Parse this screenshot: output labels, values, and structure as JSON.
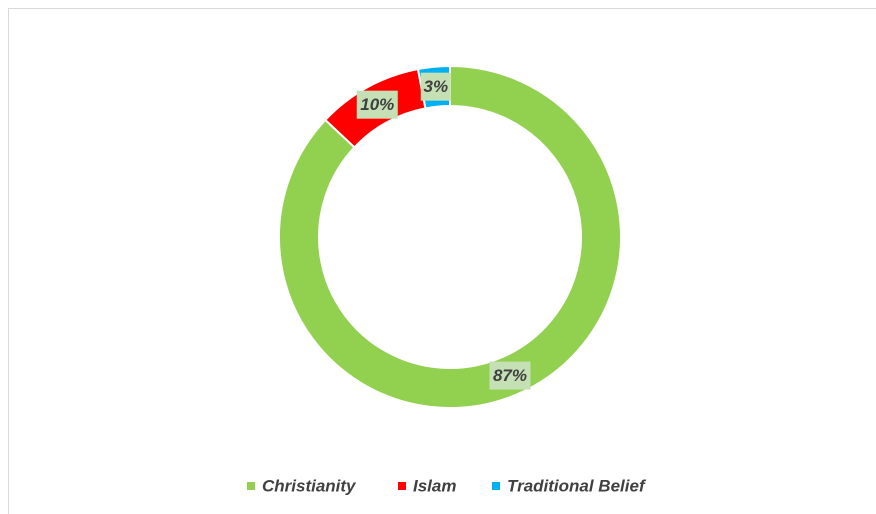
{
  "chart_data": {
    "type": "donut",
    "categories": [
      "Christianity",
      "Islam",
      "Traditional Belief"
    ],
    "values": [
      87,
      10,
      3
    ],
    "value_labels": [
      "87%",
      "10%",
      "3%"
    ],
    "colors": [
      "#92d050",
      "#ff0000",
      "#00b0f0"
    ],
    "legend": "bottom"
  }
}
